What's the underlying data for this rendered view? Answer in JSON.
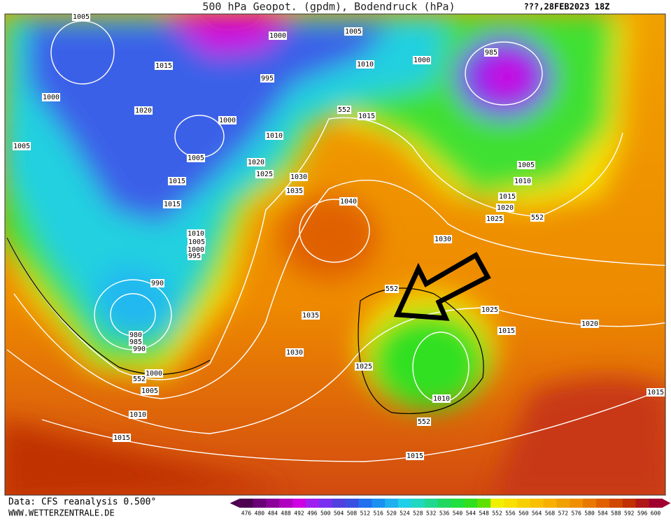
{
  "header": {
    "title": "500 hPa Geopot. (gpdm), Bodendruck (hPa)",
    "date": "???,28FEB2023 18Z"
  },
  "footer": {
    "source": "Data: CFS reanalysis 0.500°",
    "site": "WWW.WETTERZENTRALE.DE"
  },
  "contour_labels": [
    "1005",
    "1015",
    "1000",
    "1020",
    "1005",
    "1015",
    "1015",
    "1005",
    "1000",
    "995",
    "1000",
    "1010",
    "1020",
    "1025",
    "1030",
    "1035",
    "1040",
    "1005",
    "1010",
    "1015",
    "552",
    "985",
    "1000",
    "1005",
    "1010",
    "1015",
    "1020",
    "1025",
    "552",
    "1030",
    "1010",
    "1005",
    "1000",
    "995",
    "990",
    "980",
    "985",
    "990",
    "1000",
    "552",
    "1005",
    "1010",
    "1015",
    "1035",
    "1030",
    "1025",
    "552",
    "1025",
    "1015",
    "1020",
    "1015",
    "1010",
    "552",
    "1015"
  ],
  "colorbar": {
    "labels": [
      476,
      480,
      484,
      488,
      492,
      496,
      500,
      504,
      508,
      512,
      516,
      520,
      524,
      528,
      532,
      536,
      540,
      544,
      548,
      552,
      556,
      560,
      564,
      568,
      572,
      576,
      580,
      584,
      588,
      592,
      596,
      600
    ],
    "colors": [
      "#4b0050",
      "#6a0078",
      "#8a0099",
      "#b000c0",
      "#cc00e0",
      "#a020f0",
      "#7a30f0",
      "#5040e0",
      "#3a50e0",
      "#2070f0",
      "#1a90f0",
      "#20b0f0",
      "#20d0e8",
      "#20d8c0",
      "#20d890",
      "#20d860",
      "#20e040",
      "#30e020",
      "#60e000",
      "#f0f000",
      "#f8e000",
      "#f8d000",
      "#f8c000",
      "#f8b000",
      "#f0a000",
      "#f09000",
      "#e87800",
      "#e06000",
      "#d04800",
      "#c03000",
      "#b01818",
      "#a00030"
    ]
  }
}
